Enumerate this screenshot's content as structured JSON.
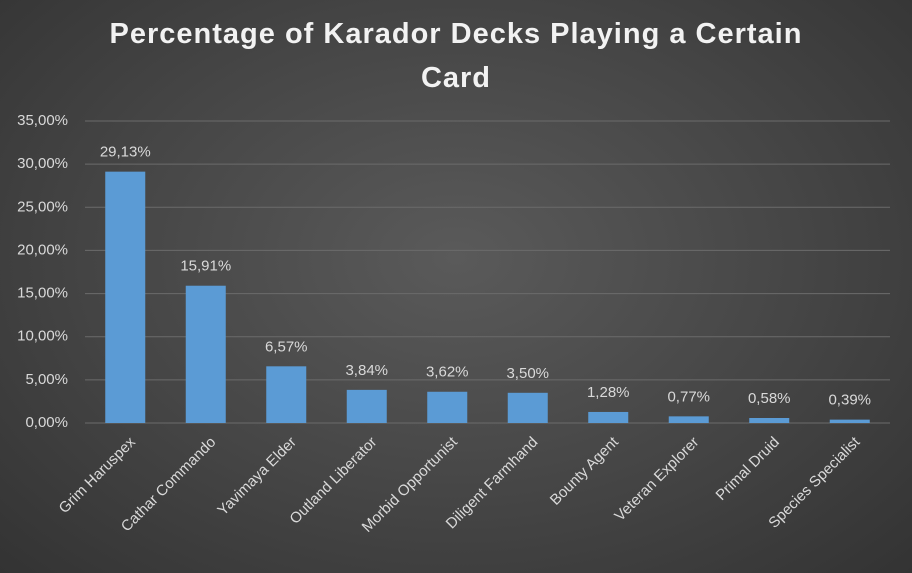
{
  "chart_data": {
    "type": "bar",
    "title": "Percentage of Karador Decks Playing a Certain Card",
    "categories": [
      "Grim Haruspex",
      "Cathar Commando",
      "Yavimaya Elder",
      "Outland Liberator",
      "Morbid Opportunist",
      "Diligent Farmhand",
      "Bounty Agent",
      "Veteran Explorer",
      "Primal Druid",
      "Species Specialist"
    ],
    "values": [
      29.13,
      15.91,
      6.57,
      3.84,
      3.62,
      3.5,
      1.28,
      0.77,
      0.58,
      0.39
    ],
    "value_labels": [
      "29,13%",
      "15,91%",
      "6,57%",
      "3,84%",
      "3,62%",
      "3,50%",
      "1,28%",
      "0,77%",
      "0,58%",
      "0,39%"
    ],
    "color": "#5b9bd5",
    "ylim": [
      0,
      35
    ],
    "yticks": [
      {
        "value": 0,
        "label": "0,00%"
      },
      {
        "value": 5,
        "label": "5,00%"
      },
      {
        "value": 10,
        "label": "10,00%"
      },
      {
        "value": 15,
        "label": "15,00%"
      },
      {
        "value": 20,
        "label": "20,00%"
      },
      {
        "value": 25,
        "label": "25,00%"
      },
      {
        "value": 30,
        "label": "30,00%"
      },
      {
        "value": 35,
        "label": "35,00%"
      }
    ],
    "grid": true
  }
}
